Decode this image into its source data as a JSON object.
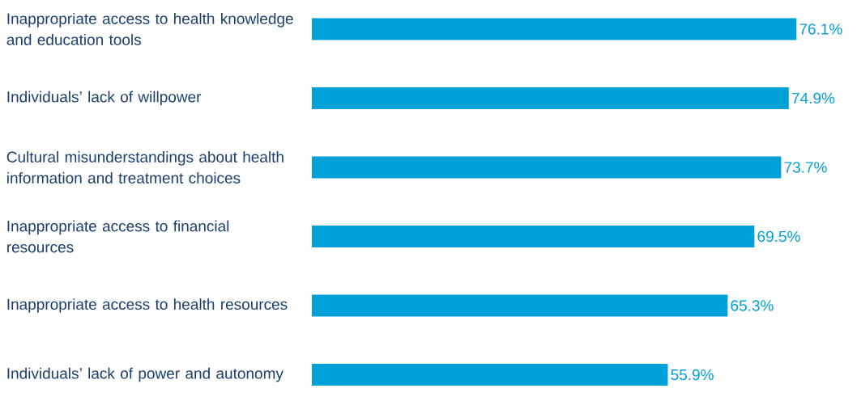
{
  "chart_data": {
    "type": "bar",
    "orientation": "horizontal",
    "color": "#00a0d8",
    "categories": [
      "Inappropriate access to health knowledge and education tools",
      "Individuals’ lack of willpower",
      "Cultural misunderstandings about health information and treatment choices",
      "Inappropriate access to financial resources",
      "Inappropriate access to health resources",
      "Individuals’ lack of power and autonomy"
    ],
    "values": [
      76.1,
      74.9,
      73.7,
      69.5,
      65.3,
      55.9
    ],
    "value_labels": [
      "76.1%",
      "74.9%",
      "73.7%",
      "69.5%",
      "65.3%",
      "55.9%"
    ]
  }
}
